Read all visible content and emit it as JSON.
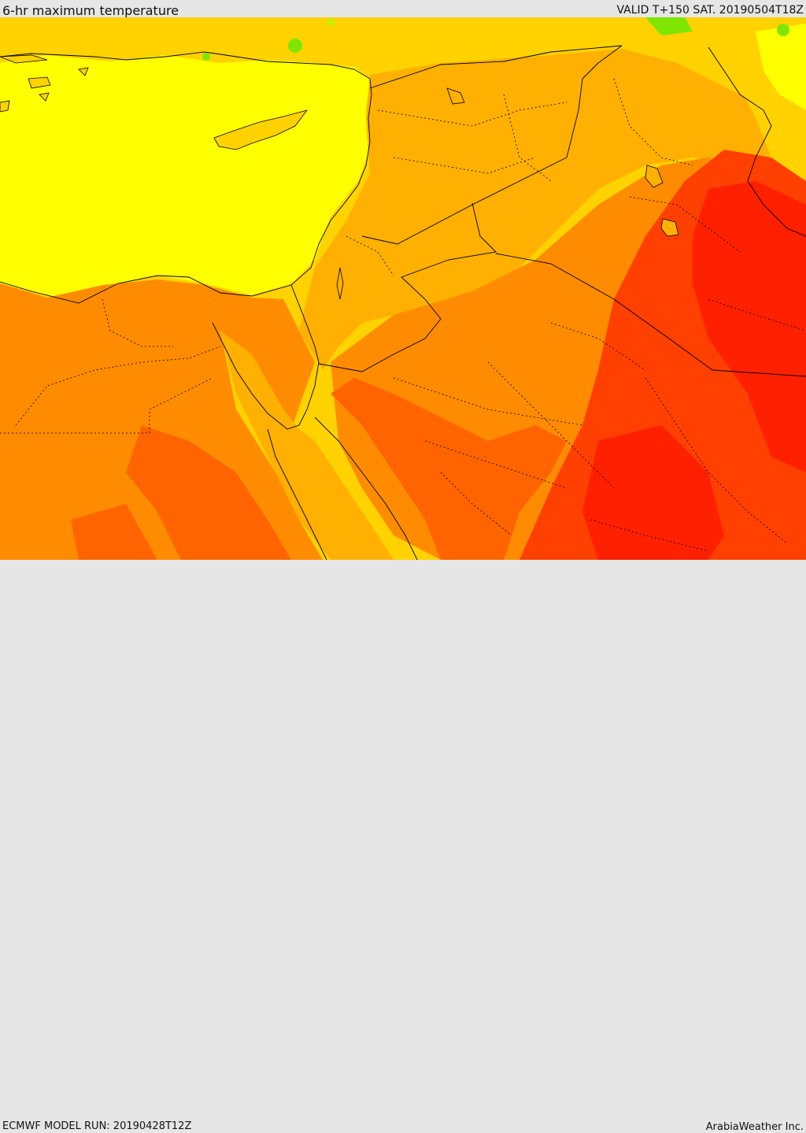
{
  "header": {
    "title": "6-hr maximum temperature",
    "valid": "VALID T+150 SAT. 20190504T18Z"
  },
  "footer": {
    "model_run": "ECMWF MODEL RUN: 20190428T12Z",
    "credit": "ArabiaWeather Inc."
  },
  "map": {
    "palette": {
      "cool_green": "#7ee600",
      "light_green": "#c8f000",
      "yellow": "#ffff00",
      "yellow_orange": "#ffd200",
      "light_orange": "#ffb000",
      "orange": "#ff8c00",
      "dark_orange": "#ff6400",
      "red_orange": "#ff4000",
      "red": "#ff2000"
    }
  }
}
